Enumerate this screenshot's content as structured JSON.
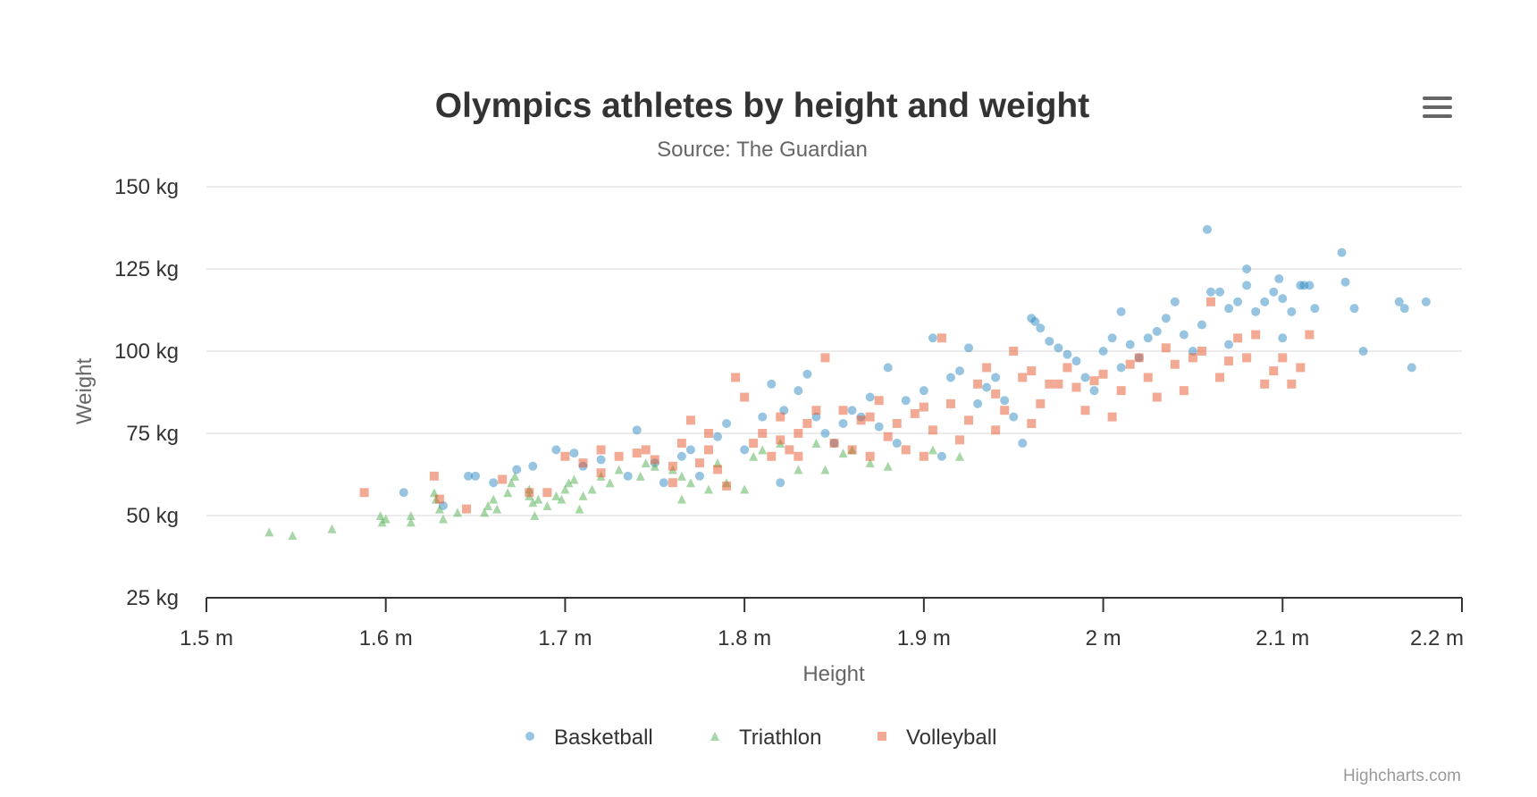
{
  "chart_data": {
    "type": "scatter",
    "title": "Olympics athletes by height and weight",
    "subtitle": "Source: The Guardian",
    "xlabel": "Height",
    "ylabel": "Weight",
    "xlim": [
      1.5,
      2.2
    ],
    "ylim": [
      25,
      150
    ],
    "x_ticks": [
      1.5,
      1.6,
      1.7,
      1.8,
      1.9,
      2.0,
      2.1,
      2.2
    ],
    "x_tick_labels": [
      "1.5 m",
      "1.6 m",
      "1.7 m",
      "1.8 m",
      "1.9 m",
      "2 m",
      "2.1 m",
      "2.2 m"
    ],
    "y_ticks": [
      25,
      50,
      75,
      100,
      125,
      150
    ],
    "y_tick_labels": [
      "25 kg",
      "50 kg",
      "75 kg",
      "100 kg",
      "125 kg",
      "150 kg"
    ],
    "grid": "horizontal",
    "legend_position": "bottom",
    "series": [
      {
        "name": "Basketball",
        "marker": "circle",
        "color": "#2f8ac4",
        "points": [
          [
            1.61,
            57
          ],
          [
            1.632,
            53
          ],
          [
            1.646,
            62
          ],
          [
            1.65,
            62
          ],
          [
            1.66,
            60
          ],
          [
            1.673,
            64
          ],
          [
            1.682,
            65
          ],
          [
            1.695,
            70
          ],
          [
            1.705,
            69
          ],
          [
            1.71,
            65
          ],
          [
            1.72,
            67
          ],
          [
            1.735,
            62
          ],
          [
            1.74,
            76
          ],
          [
            1.75,
            66
          ],
          [
            1.755,
            60
          ],
          [
            1.765,
            68
          ],
          [
            1.77,
            70
          ],
          [
            1.775,
            62
          ],
          [
            1.785,
            74
          ],
          [
            1.79,
            78
          ],
          [
            1.8,
            70
          ],
          [
            1.81,
            80
          ],
          [
            1.815,
            90
          ],
          [
            1.82,
            60
          ],
          [
            1.822,
            82
          ],
          [
            1.83,
            88
          ],
          [
            1.835,
            93
          ],
          [
            1.84,
            80
          ],
          [
            1.845,
            75
          ],
          [
            1.85,
            72
          ],
          [
            1.855,
            78
          ],
          [
            1.86,
            82
          ],
          [
            1.865,
            80
          ],
          [
            1.87,
            86
          ],
          [
            1.875,
            77
          ],
          [
            1.88,
            95
          ],
          [
            1.885,
            72
          ],
          [
            1.89,
            85
          ],
          [
            1.9,
            88
          ],
          [
            1.905,
            104
          ],
          [
            1.91,
            68
          ],
          [
            1.915,
            92
          ],
          [
            1.92,
            94
          ],
          [
            1.925,
            101
          ],
          [
            1.93,
            84
          ],
          [
            1.935,
            89
          ],
          [
            1.94,
            92
          ],
          [
            1.945,
            85
          ],
          [
            1.95,
            80
          ],
          [
            1.955,
            72
          ],
          [
            1.96,
            110
          ],
          [
            1.962,
            109
          ],
          [
            1.965,
            107
          ],
          [
            1.97,
            103
          ],
          [
            1.975,
            101
          ],
          [
            1.98,
            99
          ],
          [
            1.985,
            97
          ],
          [
            1.99,
            92
          ],
          [
            1.995,
            88
          ],
          [
            2.0,
            100
          ],
          [
            2.005,
            104
          ],
          [
            2.01,
            95
          ],
          [
            2.015,
            102
          ],
          [
            2.02,
            98
          ],
          [
            2.025,
            104
          ],
          [
            2.03,
            106
          ],
          [
            2.035,
            110
          ],
          [
            2.04,
            115
          ],
          [
            2.045,
            105
          ],
          [
            2.05,
            100
          ],
          [
            2.055,
            108
          ],
          [
            2.058,
            137
          ],
          [
            2.06,
            118
          ],
          [
            2.065,
            118
          ],
          [
            2.07,
            113
          ],
          [
            2.075,
            115
          ],
          [
            2.08,
            125
          ],
          [
            2.08,
            120
          ],
          [
            2.085,
            112
          ],
          [
            2.09,
            115
          ],
          [
            2.095,
            118
          ],
          [
            2.098,
            122
          ],
          [
            2.1,
            116
          ],
          [
            2.105,
            112
          ],
          [
            2.11,
            120
          ],
          [
            2.112,
            120
          ],
          [
            2.115,
            120
          ],
          [
            2.118,
            113
          ],
          [
            2.133,
            130
          ],
          [
            2.135,
            121
          ],
          [
            2.14,
            113
          ],
          [
            2.145,
            100
          ],
          [
            2.165,
            115
          ],
          [
            2.168,
            113
          ],
          [
            2.172,
            95
          ],
          [
            2.18,
            115
          ],
          [
            2.07,
            102
          ],
          [
            2.1,
            104
          ],
          [
            2.01,
            112
          ]
        ]
      },
      {
        "name": "Triathlon",
        "marker": "triangle",
        "color": "#4fae4f",
        "points": [
          [
            1.535,
            45
          ],
          [
            1.548,
            44
          ],
          [
            1.57,
            46
          ],
          [
            1.597,
            50
          ],
          [
            1.598,
            48
          ],
          [
            1.6,
            49
          ],
          [
            1.614,
            50
          ],
          [
            1.614,
            48
          ],
          [
            1.627,
            57
          ],
          [
            1.628,
            55
          ],
          [
            1.63,
            52
          ],
          [
            1.632,
            49
          ],
          [
            1.64,
            51
          ],
          [
            1.655,
            51
          ],
          [
            1.657,
            53
          ],
          [
            1.66,
            55
          ],
          [
            1.662,
            52
          ],
          [
            1.668,
            57
          ],
          [
            1.67,
            60
          ],
          [
            1.672,
            62
          ],
          [
            1.68,
            58
          ],
          [
            1.68,
            56
          ],
          [
            1.682,
            54
          ],
          [
            1.683,
            50
          ],
          [
            1.685,
            55
          ],
          [
            1.69,
            53
          ],
          [
            1.695,
            56
          ],
          [
            1.698,
            55
          ],
          [
            1.7,
            58
          ],
          [
            1.702,
            60
          ],
          [
            1.705,
            61
          ],
          [
            1.708,
            52
          ],
          [
            1.71,
            56
          ],
          [
            1.715,
            58
          ],
          [
            1.72,
            62
          ],
          [
            1.725,
            60
          ],
          [
            1.73,
            64
          ],
          [
            1.745,
            66
          ],
          [
            1.75,
            65
          ],
          [
            1.76,
            64
          ],
          [
            1.765,
            55
          ],
          [
            1.77,
            60
          ],
          [
            1.78,
            58
          ],
          [
            1.785,
            66
          ],
          [
            1.79,
            60
          ],
          [
            1.8,
            58
          ],
          [
            1.805,
            68
          ],
          [
            1.83,
            64
          ],
          [
            1.845,
            64
          ],
          [
            1.87,
            66
          ],
          [
            1.855,
            69
          ],
          [
            1.81,
            70
          ],
          [
            1.82,
            72
          ],
          [
            1.84,
            72
          ],
          [
            1.86,
            70
          ],
          [
            1.88,
            65
          ],
          [
            1.905,
            70
          ],
          [
            1.92,
            68
          ],
          [
            1.765,
            62
          ],
          [
            1.742,
            62
          ]
        ]
      },
      {
        "name": "Volleyball",
        "marker": "square",
        "color": "#e8552a",
        "points": [
          [
            1.588,
            57
          ],
          [
            1.627,
            62
          ],
          [
            1.63,
            55
          ],
          [
            1.645,
            52
          ],
          [
            1.665,
            61
          ],
          [
            1.68,
            57
          ],
          [
            1.69,
            57
          ],
          [
            1.7,
            68
          ],
          [
            1.71,
            66
          ],
          [
            1.72,
            70
          ],
          [
            1.73,
            68
          ],
          [
            1.74,
            69
          ],
          [
            1.745,
            70
          ],
          [
            1.75,
            67
          ],
          [
            1.76,
            60
          ],
          [
            1.765,
            72
          ],
          [
            1.77,
            79
          ],
          [
            1.775,
            66
          ],
          [
            1.78,
            75
          ],
          [
            1.785,
            64
          ],
          [
            1.79,
            59
          ],
          [
            1.795,
            92
          ],
          [
            1.8,
            86
          ],
          [
            1.805,
            72
          ],
          [
            1.81,
            75
          ],
          [
            1.815,
            68
          ],
          [
            1.82,
            80
          ],
          [
            1.825,
            70
          ],
          [
            1.83,
            75
          ],
          [
            1.835,
            78
          ],
          [
            1.84,
            82
          ],
          [
            1.845,
            98
          ],
          [
            1.85,
            72
          ],
          [
            1.855,
            82
          ],
          [
            1.86,
            70
          ],
          [
            1.865,
            79
          ],
          [
            1.87,
            68
          ],
          [
            1.875,
            85
          ],
          [
            1.88,
            74
          ],
          [
            1.885,
            78
          ],
          [
            1.89,
            70
          ],
          [
            1.895,
            81
          ],
          [
            1.9,
            83
          ],
          [
            1.905,
            76
          ],
          [
            1.91,
            104
          ],
          [
            1.915,
            84
          ],
          [
            1.92,
            73
          ],
          [
            1.925,
            79
          ],
          [
            1.93,
            90
          ],
          [
            1.935,
            95
          ],
          [
            1.94,
            87
          ],
          [
            1.945,
            82
          ],
          [
            1.95,
            100
          ],
          [
            1.955,
            92
          ],
          [
            1.96,
            94
          ],
          [
            1.965,
            84
          ],
          [
            1.97,
            90
          ],
          [
            1.975,
            90
          ],
          [
            1.98,
            95
          ],
          [
            1.985,
            89
          ],
          [
            1.99,
            82
          ],
          [
            1.995,
            91
          ],
          [
            2.0,
            93
          ],
          [
            2.005,
            80
          ],
          [
            2.01,
            88
          ],
          [
            2.015,
            96
          ],
          [
            2.02,
            98
          ],
          [
            2.025,
            92
          ],
          [
            2.03,
            86
          ],
          [
            2.035,
            101
          ],
          [
            2.04,
            96
          ],
          [
            2.045,
            88
          ],
          [
            2.05,
            98
          ],
          [
            2.055,
            100
          ],
          [
            2.06,
            115
          ],
          [
            2.065,
            92
          ],
          [
            2.07,
            97
          ],
          [
            2.075,
            104
          ],
          [
            2.08,
            98
          ],
          [
            2.085,
            105
          ],
          [
            2.09,
            90
          ],
          [
            2.095,
            94
          ],
          [
            2.1,
            98
          ],
          [
            2.105,
            90
          ],
          [
            2.11,
            95
          ],
          [
            2.115,
            105
          ],
          [
            1.96,
            78
          ],
          [
            1.94,
            76
          ],
          [
            1.9,
            68
          ],
          [
            1.87,
            80
          ],
          [
            1.83,
            68
          ],
          [
            1.82,
            73
          ],
          [
            1.78,
            70
          ],
          [
            1.76,
            65
          ],
          [
            1.72,
            63
          ]
        ]
      }
    ]
  },
  "menu_icon": "hamburger-menu-icon",
  "credits": "Highcharts.com"
}
